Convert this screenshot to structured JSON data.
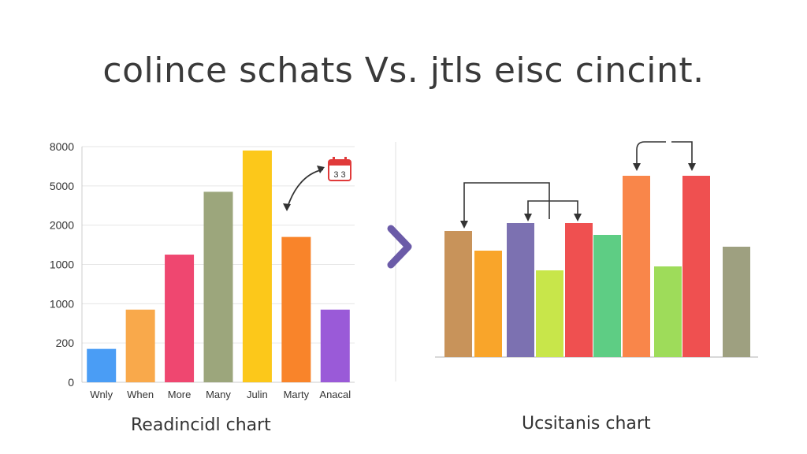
{
  "title": "colince schats  Vs.  jtls  eisc cincint.",
  "chart_data": [
    {
      "type": "bar",
      "caption": "Readincidl chart",
      "categories": [
        "Wnly",
        "When",
        "More",
        "Many",
        "Julin",
        "Marty",
        "Anacal"
      ],
      "y_tick_labels": [
        "8000",
        "5000",
        "2000",
        "1000",
        "1000",
        "200",
        "0"
      ],
      "values": [
        0.85,
        1.85,
        3.25,
        4.85,
        5.9,
        3.7,
        1.85
      ],
      "colors": [
        "#4a9df5",
        "#f9a94b",
        "#ef4770",
        "#9ca67c",
        "#fcc81a",
        "#f9842a",
        "#9a5ad8"
      ],
      "grid": true,
      "annotation_icon": "calendar-icon"
    },
    {
      "type": "bar",
      "caption": "Ucsitanis chart",
      "values": [
        3.2,
        2.7,
        3.4,
        2.2,
        3.4,
        3.1,
        4.6,
        2.3,
        4.6,
        2.8
      ],
      "colors": [
        "#c8935a",
        "#f9a52a",
        "#7c71b1",
        "#c8e64a",
        "#ef5050",
        "#5ecd84",
        "#f9864a",
        "#9edc5a",
        "#ef5050",
        "#9ea080"
      ],
      "connector_arrows": true
    }
  ],
  "divider_icon": "chevron-right-icon",
  "colors": {
    "axis": "#cccccc",
    "arrow": "#333333",
    "chevron": "#6b5ba8"
  }
}
